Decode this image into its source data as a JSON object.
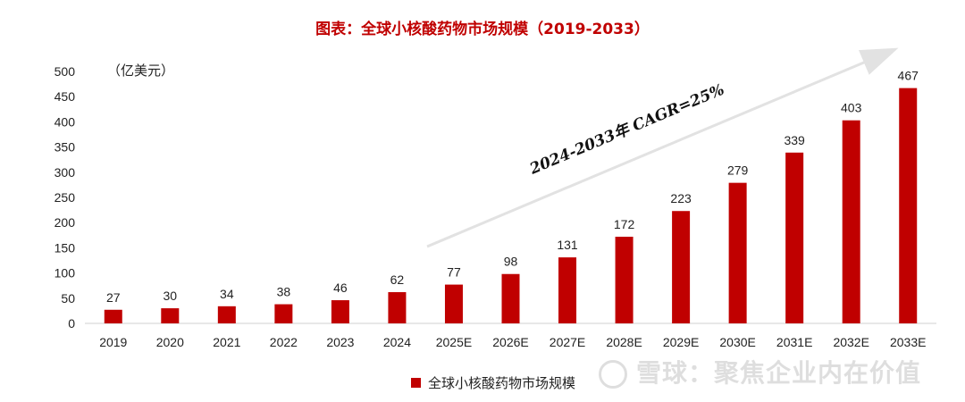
{
  "chart_data": {
    "type": "bar",
    "title": "图表：全球小核酸药物市场规模（2019-2033）",
    "unit": "（亿美元）",
    "categories": [
      "2019",
      "2020",
      "2021",
      "2022",
      "2023",
      "2024",
      "2025E",
      "2026E",
      "2027E",
      "2028E",
      "2029E",
      "2030E",
      "2031E",
      "2032E",
      "2033E"
    ],
    "series": [
      {
        "name": "全球小核酸药物市场规模",
        "values": [
          27,
          30,
          34,
          38,
          46,
          62,
          77,
          98,
          131,
          172,
          223,
          279,
          339,
          403,
          467
        ]
      }
    ],
    "ylim": [
      0,
      500
    ],
    "yticks": [
      0,
      50,
      100,
      150,
      200,
      250,
      300,
      350,
      400,
      450,
      500
    ],
    "annotation": "2024-2033年 CAGR=25%",
    "grid": false,
    "legend_position": "bottom",
    "colors": {
      "bar": "#c00000",
      "title": "#c00000"
    }
  },
  "watermark": "雪球：聚焦企业内在价值"
}
